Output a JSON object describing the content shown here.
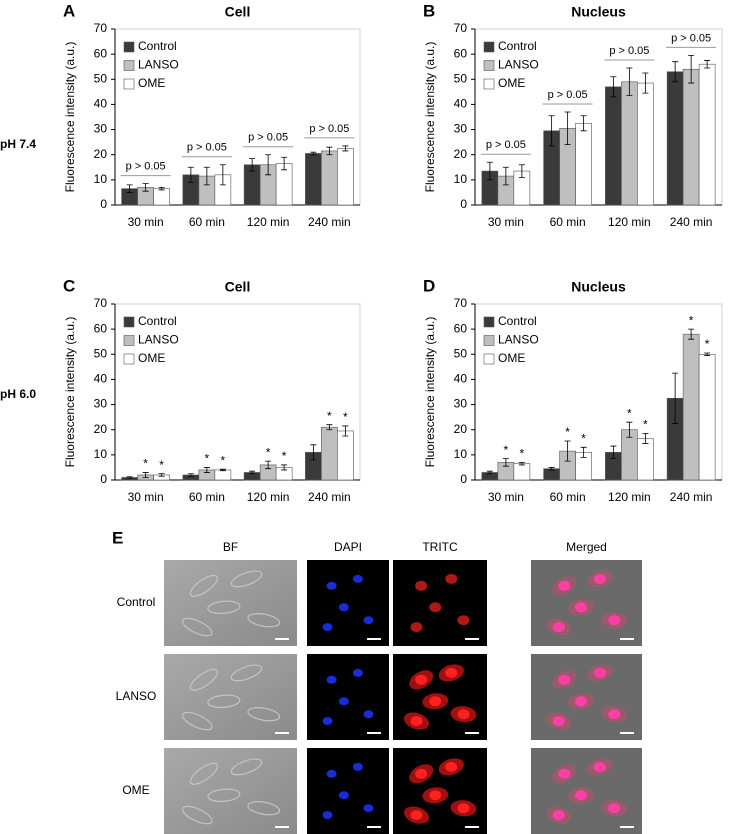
{
  "chart_data": [
    {
      "type": "bar",
      "panel": "A",
      "title": "Cell",
      "y_label": "Fluorescence intensity (a.u.)",
      "categories": [
        "30 min",
        "60 min",
        "120 min",
        "240 min"
      ],
      "series": [
        {
          "name": "Control",
          "color": "#3a3a3a",
          "values": [
            6.5,
            12,
            16,
            20.5
          ],
          "errors": [
            1.5,
            3,
            2.5,
            0.5
          ]
        },
        {
          "name": "LANSO",
          "color": "#bfbfbf",
          "values": [
            7,
            11.5,
            16,
            21.5
          ],
          "errors": [
            1.5,
            3.5,
            4,
            1.5
          ]
        },
        {
          "name": "OME",
          "color": "#ffffff",
          "values": [
            6.5,
            12,
            16.5,
            22.5
          ],
          "errors": [
            0.5,
            4,
            2.5,
            1
          ]
        }
      ],
      "annotations": [
        "p > 0.05",
        "p > 0.05",
        "p > 0.05",
        "p > 0.05"
      ],
      "ylim": [
        0,
        70
      ],
      "yticks": [
        0,
        10,
        20,
        30,
        40,
        50,
        60,
        70
      ],
      "legend": "upper left"
    },
    {
      "type": "bar",
      "panel": "B",
      "title": "Nucleus",
      "y_label": "Fluorescence intensity (a.u.)",
      "categories": [
        "30 min",
        "60 min",
        "120 min",
        "240 min"
      ],
      "series": [
        {
          "name": "Control",
          "color": "#3a3a3a",
          "values": [
            13.5,
            29.5,
            47,
            53
          ],
          "errors": [
            3.5,
            6,
            4,
            4
          ]
        },
        {
          "name": "LANSO",
          "color": "#bfbfbf",
          "values": [
            11.5,
            30.5,
            49,
            54
          ],
          "errors": [
            3.5,
            6.5,
            5.5,
            5.5
          ]
        },
        {
          "name": "OME",
          "color": "#ffffff",
          "values": [
            13.5,
            32.5,
            48.5,
            56
          ],
          "errors": [
            2.5,
            3,
            4,
            1.5
          ]
        }
      ],
      "annotations": [
        "p > 0.05",
        "p > 0.05",
        "p > 0.05",
        "p > 0.05"
      ],
      "ylim": [
        0,
        70
      ],
      "yticks": [
        0,
        10,
        20,
        30,
        40,
        50,
        60,
        70
      ],
      "legend": "upper left"
    },
    {
      "type": "bar",
      "panel": "C",
      "title": "Cell",
      "y_label": "Fluorescence intensity (a.u.)",
      "categories": [
        "30 min",
        "60 min",
        "120 min",
        "240 min"
      ],
      "series": [
        {
          "name": "Control",
          "color": "#3a3a3a",
          "values": [
            1,
            2,
            3,
            11
          ],
          "errors": [
            0.3,
            0.5,
            0.5,
            3
          ]
        },
        {
          "name": "LANSO",
          "color": "#bfbfbf",
          "values": [
            2,
            4,
            6,
            21
          ],
          "errors": [
            1,
            1,
            1.5,
            1
          ],
          "significance": [
            "*",
            "*",
            "*",
            "*"
          ]
        },
        {
          "name": "OME",
          "color": "#ffffff",
          "values": [
            2,
            4,
            5,
            19.5
          ],
          "errors": [
            0.5,
            0.3,
            1,
            2
          ],
          "significance": [
            "*",
            "*",
            "*",
            "*"
          ]
        }
      ],
      "ylim": [
        0,
        70
      ],
      "yticks": [
        0,
        10,
        20,
        30,
        40,
        50,
        60,
        70
      ],
      "legend": "upper left"
    },
    {
      "type": "bar",
      "panel": "D",
      "title": "Nucleus",
      "y_label": "Fluorescence intensity (a.u.)",
      "categories": [
        "30 min",
        "60 min",
        "120 min",
        "240 min"
      ],
      "series": [
        {
          "name": "Control",
          "color": "#3a3a3a",
          "values": [
            3,
            4.5,
            11,
            32.5
          ],
          "errors": [
            0.5,
            0.5,
            2.5,
            10
          ]
        },
        {
          "name": "LANSO",
          "color": "#bfbfbf",
          "values": [
            7,
            11.5,
            20,
            58
          ],
          "errors": [
            1.5,
            4,
            3,
            2
          ],
          "significance": [
            "*",
            "*",
            "*",
            "*"
          ]
        },
        {
          "name": "OME",
          "color": "#ffffff",
          "values": [
            6.5,
            11,
            16.5,
            50
          ],
          "errors": [
            0.5,
            2,
            2,
            0.5
          ],
          "significance": [
            "*",
            "*",
            "*",
            "*"
          ]
        }
      ],
      "ylim": [
        0,
        70
      ],
      "yticks": [
        0,
        10,
        20,
        30,
        40,
        50,
        60,
        70
      ],
      "legend": "upper left"
    }
  ],
  "row_labels": [
    "pH 7.4",
    "pH 6.0"
  ],
  "panel_e": {
    "letter": "E",
    "columns": [
      "BF",
      "DAPI",
      "TRITC",
      "Merged"
    ],
    "rows": [
      "Control",
      "LANSO",
      "OME"
    ]
  }
}
